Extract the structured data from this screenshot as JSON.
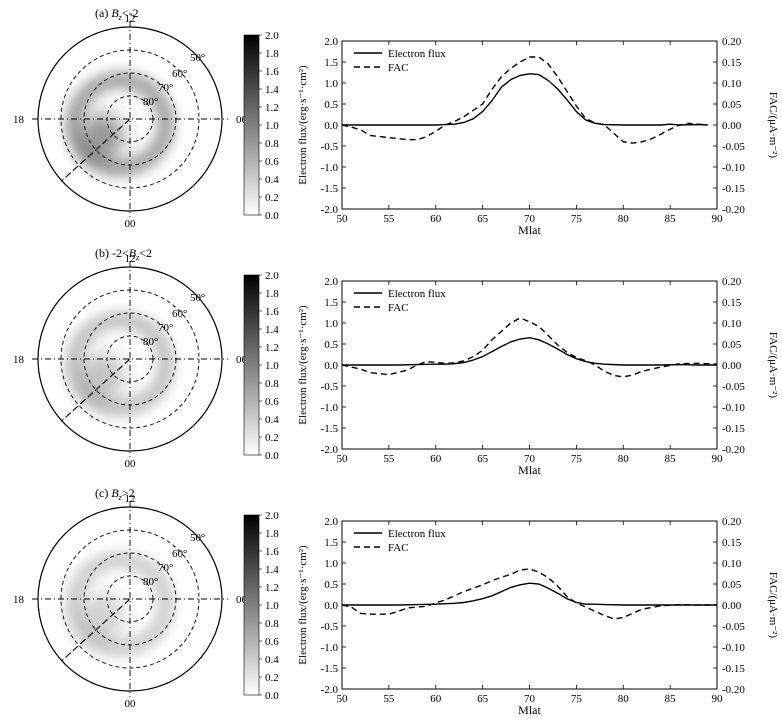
{
  "chart_data": [
    {
      "panel_label": "(a)",
      "condition": {
        "var": "B",
        "sub": "z",
        "text": "<-2"
      },
      "polar": {
        "hour_labels": {
          "top": "12",
          "left": "18",
          "right": "06",
          "bottom": "00"
        },
        "lat_labels": [
          "50°",
          "60°",
          "70°",
          "80°"
        ],
        "intensity": 1.0
      },
      "colorbar": {
        "ticks": [
          "2.0",
          "1.8",
          "1.6",
          "1.4",
          "1.2",
          "1.0",
          "0.8",
          "0.6",
          "0.4",
          "0.2",
          "0.0"
        ],
        "range": [
          0,
          2
        ]
      },
      "line": {
        "type": "line",
        "xlabel": "Mlat",
        "ylabel": "Electron flux/(erg·s⁻¹·cm²)",
        "y2label": "FAC/(μA·m⁻²)",
        "xlim": [
          50,
          90
        ],
        "ylim": [
          -2,
          2
        ],
        "y2lim": [
          -0.2,
          0.2
        ],
        "xticks": [
          "50",
          "55",
          "60",
          "65",
          "70",
          "75",
          "80",
          "85",
          "90"
        ],
        "yticks": [
          "2.0",
          "1.5",
          "1.0",
          "0.5",
          "0.0",
          "-0.5",
          "-1.0",
          "-1.5",
          "-2.0"
        ],
        "y2ticks": [
          "0.20",
          "0.15",
          "0.10",
          "0.05",
          "0.00",
          "-0.05",
          "-0.10",
          "-0.15",
          "-0.20"
        ],
        "legend": [
          "Electron flux",
          "FAC"
        ],
        "series": [
          {
            "name": "Electron flux",
            "axis": "left",
            "x": [
              50,
              52,
              54,
              56,
              58,
              60,
              61,
              62,
              63,
              64,
              65,
              66,
              67,
              68,
              69,
              70,
              71,
              72,
              73,
              74,
              75,
              76,
              77,
              78,
              80,
              82,
              84,
              85,
              86,
              88,
              89
            ],
            "y": [
              0,
              0,
              0,
              0,
              0,
              0,
              0.01,
              0.02,
              0.06,
              0.15,
              0.32,
              0.58,
              0.9,
              1.08,
              1.18,
              1.22,
              1.2,
              1.06,
              0.86,
              0.6,
              0.32,
              0.12,
              0.04,
              0.01,
              0,
              0,
              0,
              0.02,
              0,
              0.01,
              0
            ]
          },
          {
            "name": "FAC",
            "axis": "right",
            "x": [
              50,
              51,
              52,
              53,
              55,
              57,
              58,
              59,
              60,
              61,
              62,
              63,
              64,
              65,
              66,
              67,
              68,
              69,
              70,
              71,
              72,
              73,
              74,
              75,
              76,
              77,
              78,
              79,
              80,
              81,
              82,
              83,
              84,
              85,
              86,
              87,
              88,
              89
            ],
            "y": [
              0,
              -0.005,
              -0.012,
              -0.025,
              -0.03,
              -0.035,
              -0.035,
              -0.028,
              -0.015,
              0,
              0.008,
              0.02,
              0.035,
              0.05,
              0.085,
              0.115,
              0.135,
              0.15,
              0.162,
              0.162,
              0.145,
              0.115,
              0.08,
              0.045,
              0.015,
              0.005,
              0,
              -0.02,
              -0.04,
              -0.043,
              -0.04,
              -0.033,
              -0.022,
              -0.01,
              0,
              0.004,
              0.002,
              0
            ]
          }
        ]
      }
    },
    {
      "panel_label": "(b)",
      "condition": {
        "var": "B",
        "sub": "z",
        "text": "<2",
        "prefix": "-2<"
      },
      "polar": {
        "hour_labels": {
          "top": "12",
          "left": "18",
          "right": "06",
          "bottom": "00"
        },
        "lat_labels": [
          "50°",
          "60°",
          "70°",
          "80°"
        ],
        "intensity": 0.6
      },
      "colorbar": {
        "ticks": [
          "2.0",
          "1.8",
          "1.6",
          "1.4",
          "1.2",
          "1.0",
          "0.8",
          "0.6",
          "0.4",
          "0.2",
          "0.0"
        ],
        "range": [
          0,
          2
        ]
      },
      "line": {
        "type": "line",
        "xlabel": "Mlat",
        "ylabel": "Electron flux/(erg·s⁻¹·cm²)",
        "y2label": "FAC/(μA·m⁻²)",
        "xlim": [
          50,
          90
        ],
        "ylim": [
          -2,
          2
        ],
        "y2lim": [
          -0.2,
          0.2
        ],
        "xticks": [
          "50",
          "55",
          "60",
          "65",
          "70",
          "75",
          "80",
          "85",
          "90"
        ],
        "yticks": [
          "2.0",
          "1.5",
          "1.0",
          "0.5",
          "0.0",
          "-0.5",
          "-1.0",
          "-1.5",
          "-2.0"
        ],
        "y2ticks": [
          "0.20",
          "0.15",
          "0.10",
          "0.05",
          "0.00",
          "-0.05",
          "-0.10",
          "-0.15",
          "-0.20"
        ],
        "legend": [
          "Electron flux",
          "FAC"
        ],
        "series": [
          {
            "name": "Electron flux",
            "axis": "left",
            "x": [
              50,
              52,
              54,
              56,
              58,
              60,
              61,
              62,
              63,
              64,
              65,
              66,
              67,
              68,
              69,
              70,
              71,
              72,
              73,
              74,
              75,
              76,
              77,
              78,
              80,
              82,
              84,
              86,
              88,
              90
            ],
            "y": [
              0,
              0,
              0,
              0,
              0.01,
              0.02,
              0.02,
              0.03,
              0.06,
              0.12,
              0.2,
              0.32,
              0.44,
              0.55,
              0.62,
              0.65,
              0.6,
              0.5,
              0.38,
              0.25,
              0.15,
              0.08,
              0.04,
              0.02,
              0,
              0,
              0,
              0.01,
              0,
              0
            ]
          },
          {
            "name": "FAC",
            "axis": "right",
            "x": [
              50,
              51,
              52,
              53,
              55,
              57,
              58,
              59,
              60,
              61,
              62,
              63,
              64,
              65,
              66,
              67,
              68,
              69,
              70,
              71,
              72,
              73,
              74,
              75,
              76,
              77,
              78,
              79,
              80,
              81,
              82,
              84,
              86,
              88,
              90
            ],
            "y": [
              0,
              -0.005,
              -0.01,
              -0.018,
              -0.023,
              -0.012,
              0,
              0.008,
              0.006,
              0.004,
              0.005,
              0.01,
              0.02,
              0.035,
              0.06,
              0.08,
              0.1,
              0.112,
              0.103,
              0.092,
              0.07,
              0.048,
              0.03,
              0.018,
              0.01,
              0,
              -0.015,
              -0.025,
              -0.028,
              -0.024,
              -0.015,
              -0.005,
              0.003,
              0.004,
              0.002
            ]
          }
        ]
      }
    },
    {
      "panel_label": "(c)",
      "condition": {
        "var": "B",
        "sub": "z",
        "text": ">2"
      },
      "polar": {
        "hour_labels": {
          "top": "12",
          "left": "18",
          "right": "06",
          "bottom": "00"
        },
        "lat_labels": [
          "50°",
          "60°",
          "70°",
          "80°"
        ],
        "intensity": 0.45
      },
      "colorbar": {
        "ticks": [
          "2.0",
          "1.8",
          "1.6",
          "1.4",
          "1.2",
          "1.0",
          "0.8",
          "0.6",
          "0.4",
          "0.2",
          "0.0"
        ],
        "range": [
          0,
          2
        ]
      },
      "line": {
        "type": "line",
        "xlabel": "Mlat",
        "ylabel": "Electron flux/(erg·s⁻¹·cm²)",
        "y2label": "FAC/(μA·m⁻²)",
        "xlim": [
          50,
          90
        ],
        "ylim": [
          -2,
          2
        ],
        "y2lim": [
          -0.2,
          0.2
        ],
        "xticks": [
          "50",
          "55",
          "60",
          "65",
          "70",
          "75",
          "80",
          "85",
          "90"
        ],
        "yticks": [
          "2.0",
          "1.5",
          "1.0",
          "0.5",
          "0.0",
          "-0.5",
          "-1.0",
          "-1.5",
          "-2.0"
        ],
        "y2ticks": [
          "0.20",
          "0.15",
          "0.10",
          "0.05",
          "0.00",
          "-0.05",
          "-0.10",
          "-0.15",
          "-0.20"
        ],
        "legend": [
          "Electron flux",
          "FAC"
        ],
        "series": [
          {
            "name": "Electron flux",
            "axis": "left",
            "x": [
              50,
              52,
              54,
              56,
              58,
              60,
              61,
              62,
              63,
              64,
              65,
              66,
              67,
              68,
              69,
              70,
              71,
              72,
              73,
              74,
              75,
              76,
              77,
              78,
              80,
              82,
              84,
              86,
              88,
              90
            ],
            "y": [
              0,
              0,
              0,
              0,
              0.01,
              0.02,
              0.03,
              0.04,
              0.06,
              0.1,
              0.15,
              0.22,
              0.32,
              0.42,
              0.48,
              0.52,
              0.5,
              0.4,
              0.28,
              0.15,
              0.06,
              0.02,
              0.02,
              0.01,
              0,
              0,
              0,
              0,
              0,
              0
            ]
          },
          {
            "name": "FAC",
            "axis": "right",
            "x": [
              50,
              51,
              52,
              53,
              55,
              56,
              57,
              58,
              59,
              60,
              61,
              62,
              63,
              64,
              65,
              66,
              67,
              68,
              69,
              70,
              71,
              72,
              73,
              74,
              75,
              76,
              77,
              78,
              79,
              80,
              81,
              82,
              84,
              86,
              88,
              90
            ],
            "y": [
              0,
              -0.005,
              -0.02,
              -0.022,
              -0.022,
              -0.015,
              -0.007,
              -0.005,
              -0.003,
              0.005,
              0.012,
              0.022,
              0.032,
              0.04,
              0.048,
              0.058,
              0.066,
              0.073,
              0.083,
              0.086,
              0.078,
              0.065,
              0.045,
              0.02,
              0.005,
              -0.005,
              -0.015,
              -0.025,
              -0.033,
              -0.03,
              -0.02,
              -0.01,
              -0.002,
              0.001,
              0,
              0
            ]
          }
        ]
      }
    }
  ]
}
